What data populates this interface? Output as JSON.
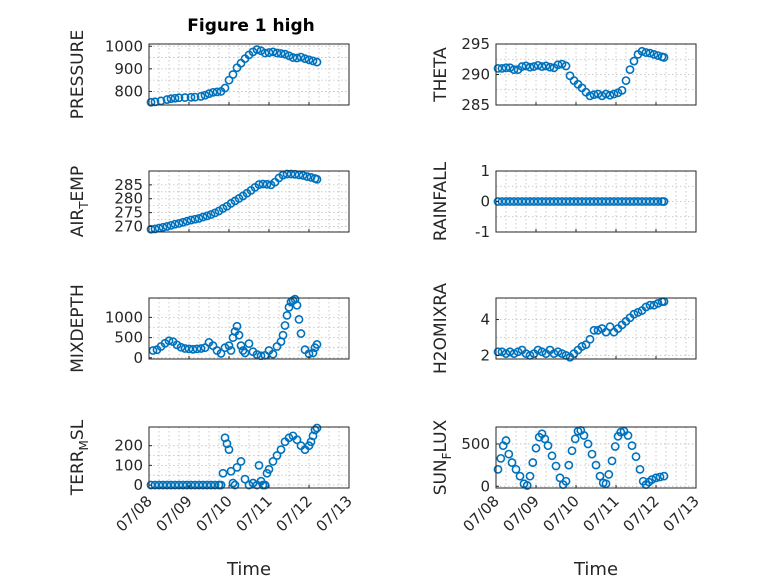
{
  "figure": {
    "title": "Figure 1 high"
  },
  "colors": {
    "marker": "#0072BD",
    "axis": "#262626",
    "grid": "#bdbdbd"
  },
  "chart_data": [
    {
      "id": "pressure",
      "type": "scatter",
      "title": "Figure 1 high",
      "ylabel": "PRESSURE",
      "ylabel_sub": null,
      "xlabel": "",
      "xlim": [
        0,
        5
      ],
      "ylim": [
        740,
        1010
      ],
      "yticks": [
        800,
        900,
        1000
      ],
      "xticks": [
        0,
        1,
        2,
        3,
        4,
        5
      ],
      "xticklabels": [],
      "grid": true,
      "x": [
        0.05,
        0.15,
        0.3,
        0.45,
        0.55,
        0.65,
        0.75,
        0.9,
        1.05,
        1.15,
        1.3,
        1.4,
        1.5,
        1.6,
        1.7,
        1.8,
        1.9,
        2.0,
        2.1,
        2.2,
        2.3,
        2.4,
        2.5,
        2.6,
        2.7,
        2.8,
        2.9,
        3.0,
        3.1,
        3.2,
        3.3,
        3.4,
        3.5,
        3.6,
        3.7,
        3.8,
        3.9,
        4.0,
        4.1,
        4.2
      ],
      "y": [
        752,
        754,
        758,
        764,
        768,
        770,
        772,
        773,
        774,
        775,
        778,
        783,
        790,
        796,
        798,
        800,
        815,
        850,
        875,
        905,
        925,
        945,
        962,
        975,
        985,
        980,
        970,
        972,
        975,
        970,
        968,
        965,
        958,
        950,
        948,
        952,
        945,
        940,
        935,
        930
      ]
    },
    {
      "id": "theta",
      "type": "scatter",
      "ylabel": "THETA",
      "ylabel_sub": null,
      "xlabel": "",
      "xlim": [
        0,
        5
      ],
      "ylim": [
        285,
        295
      ],
      "yticks": [
        285,
        290,
        295
      ],
      "xticks": [
        0,
        1,
        2,
        3,
        4,
        5
      ],
      "xticklabels": [],
      "grid": true,
      "x": [
        0.05,
        0.15,
        0.25,
        0.35,
        0.45,
        0.55,
        0.65,
        0.75,
        0.85,
        0.95,
        1.05,
        1.15,
        1.25,
        1.35,
        1.45,
        1.55,
        1.65,
        1.75,
        1.85,
        1.95,
        2.05,
        2.15,
        2.25,
        2.35,
        2.45,
        2.55,
        2.65,
        2.75,
        2.85,
        2.95,
        3.05,
        3.15,
        3.25,
        3.35,
        3.45,
        3.55,
        3.65,
        3.75,
        3.85,
        3.95,
        4.05,
        4.15,
        4.2
      ],
      "y": [
        291.0,
        291.0,
        291.1,
        291.1,
        290.8,
        290.8,
        291.3,
        291.4,
        291.2,
        291.3,
        291.5,
        291.3,
        291.4,
        291.2,
        291.1,
        291.6,
        291.7,
        291.4,
        289.8,
        289.0,
        288.4,
        287.8,
        287.1,
        286.5,
        286.7,
        286.8,
        286.5,
        286.8,
        286.6,
        286.8,
        287.0,
        287.4,
        289.0,
        290.8,
        292.2,
        293.3,
        293.8,
        293.6,
        293.5,
        293.3,
        293.1,
        292.9,
        292.8
      ]
    },
    {
      "id": "air_temp",
      "type": "scatter",
      "ylabel": "AIR",
      "ylabel_sub": "T",
      "ylabel_post": "EMP",
      "xlabel": "",
      "xlim": [
        0,
        5
      ],
      "ylim": [
        268,
        290
      ],
      "yticks": [
        270,
        275,
        280,
        285
      ],
      "xticks": [
        0,
        1,
        2,
        3,
        4,
        5
      ],
      "xticklabels": [],
      "grid": true,
      "x": [
        0.05,
        0.15,
        0.25,
        0.35,
        0.45,
        0.55,
        0.65,
        0.75,
        0.85,
        0.95,
        1.05,
        1.15,
        1.25,
        1.35,
        1.45,
        1.55,
        1.65,
        1.75,
        1.85,
        1.95,
        2.05,
        2.15,
        2.25,
        2.35,
        2.45,
        2.55,
        2.65,
        2.75,
        2.85,
        2.95,
        3.05,
        3.15,
        3.25,
        3.35,
        3.45,
        3.55,
        3.65,
        3.75,
        3.85,
        3.95,
        4.05,
        4.15,
        4.2
      ],
      "y": [
        269,
        269.1,
        269.4,
        269.7,
        270,
        270.4,
        270.8,
        271.1,
        271.5,
        271.9,
        272.3,
        272.6,
        272.9,
        273.4,
        273.8,
        274.3,
        274.9,
        275.6,
        276.5,
        277.3,
        278.3,
        279.2,
        280.1,
        281.0,
        282.0,
        283.0,
        284.1,
        285.1,
        285.3,
        285.2,
        285.0,
        286.0,
        287.5,
        288.5,
        288.9,
        288.9,
        288.8,
        288.6,
        288.4,
        288.0,
        287.7,
        287.3,
        287.0
      ]
    },
    {
      "id": "rainfall",
      "type": "scatter",
      "ylabel": "RAINFALL",
      "ylabel_sub": null,
      "xlabel": "",
      "xlim": [
        0,
        5
      ],
      "ylim": [
        -1,
        1
      ],
      "yticks": [
        -1,
        0,
        1
      ],
      "xticks": [
        0,
        1,
        2,
        3,
        4,
        5
      ],
      "xticklabels": [],
      "grid": true,
      "x": [
        0.05,
        0.15,
        0.25,
        0.35,
        0.45,
        0.55,
        0.65,
        0.75,
        0.85,
        0.95,
        1.05,
        1.15,
        1.25,
        1.35,
        1.45,
        1.55,
        1.65,
        1.75,
        1.85,
        1.95,
        2.05,
        2.15,
        2.25,
        2.35,
        2.45,
        2.55,
        2.65,
        2.75,
        2.85,
        2.95,
        3.05,
        3.15,
        3.25,
        3.35,
        3.45,
        3.55,
        3.65,
        3.75,
        3.85,
        3.95,
        4.05,
        4.15,
        4.2
      ],
      "y": [
        0,
        0,
        0,
        0,
        0,
        0,
        0,
        0,
        0,
        0,
        0,
        0,
        0,
        0,
        0,
        0,
        0,
        0,
        0,
        0,
        0,
        0,
        0,
        0,
        0,
        0,
        0,
        0,
        0,
        0,
        0,
        0,
        0,
        0,
        0,
        0,
        0,
        0,
        0,
        0,
        0,
        0,
        0
      ]
    },
    {
      "id": "mixdepth",
      "type": "scatter",
      "ylabel": "MIXDEPTH",
      "ylabel_sub": null,
      "xlabel": "",
      "xlim": [
        0,
        5
      ],
      "ylim": [
        -30,
        1480
      ],
      "yticks": [
        0,
        500,
        1000
      ],
      "xticks": [
        0,
        1,
        2,
        3,
        4,
        5
      ],
      "xticklabels": [],
      "grid": true,
      "x": [
        0.1,
        0.2,
        0.3,
        0.4,
        0.5,
        0.6,
        0.7,
        0.8,
        0.9,
        1.0,
        1.1,
        1.2,
        1.3,
        1.4,
        1.5,
        1.6,
        1.7,
        1.8,
        1.9,
        2.0,
        2.05,
        2.1,
        2.15,
        2.2,
        2.25,
        2.3,
        2.35,
        2.4,
        2.5,
        2.6,
        2.7,
        2.8,
        2.9,
        3.0,
        3.1,
        3.2,
        3.3,
        3.35,
        3.4,
        3.45,
        3.5,
        3.55,
        3.6,
        3.65,
        3.7,
        3.75,
        3.8,
        3.9,
        4.0,
        4.1,
        4.15,
        4.2
      ],
      "y": [
        180,
        200,
        280,
        360,
        420,
        400,
        320,
        260,
        230,
        220,
        210,
        220,
        230,
        250,
        380,
        300,
        180,
        110,
        250,
        300,
        180,
        500,
        650,
        780,
        560,
        300,
        180,
        120,
        350,
        150,
        80,
        50,
        60,
        180,
        90,
        280,
        400,
        560,
        800,
        1050,
        1250,
        1380,
        1420,
        1450,
        1300,
        950,
        600,
        200,
        100,
        120,
        250,
        330
      ]
    },
    {
      "id": "h2omixra",
      "type": "scatter",
      "ylabel": "H2OMIXRA",
      "ylabel_sub": null,
      "xlabel": "",
      "xlim": [
        0,
        5
      ],
      "ylim": [
        1.8,
        5.2
      ],
      "yticks": [
        2,
        4
      ],
      "xticks": [
        0,
        1,
        2,
        3,
        4,
        5
      ],
      "xticklabels": [],
      "grid": true,
      "x": [
        0.05,
        0.15,
        0.25,
        0.35,
        0.45,
        0.55,
        0.65,
        0.75,
        0.85,
        0.95,
        1.05,
        1.15,
        1.25,
        1.35,
        1.45,
        1.55,
        1.65,
        1.75,
        1.85,
        1.95,
        2.05,
        2.15,
        2.25,
        2.35,
        2.45,
        2.55,
        2.65,
        2.75,
        2.85,
        2.95,
        3.05,
        3.15,
        3.25,
        3.35,
        3.45,
        3.55,
        3.65,
        3.75,
        3.85,
        3.95,
        4.05,
        4.15,
        4.2
      ],
      "y": [
        2.2,
        2.2,
        2.1,
        2.2,
        2.1,
        2.2,
        2.3,
        2.1,
        2.0,
        2.1,
        2.3,
        2.2,
        2.1,
        2.3,
        2.1,
        2.2,
        2.1,
        2.0,
        1.9,
        2.1,
        2.3,
        2.5,
        2.6,
        2.9,
        3.4,
        3.4,
        3.5,
        3.3,
        3.6,
        3.3,
        3.5,
        3.7,
        3.9,
        4.1,
        4.3,
        4.4,
        4.5,
        4.7,
        4.8,
        4.8,
        4.9,
        5.0,
        5.0
      ]
    },
    {
      "id": "terr_msl",
      "type": "scatter",
      "ylabel": "TERR",
      "ylabel_sub": "M",
      "ylabel_post": "SL",
      "xlabel": "Time",
      "xlim": [
        0,
        5
      ],
      "ylim": [
        -15,
        295
      ],
      "yticks": [
        0,
        100,
        200
      ],
      "xticks": [
        0,
        1,
        2,
        3,
        4,
        5
      ],
      "xticklabels": [
        "07/08",
        "07/09",
        "07/10",
        "07/11",
        "07/12",
        "07/13"
      ],
      "grid": true,
      "x": [
        0.05,
        0.15,
        0.25,
        0.35,
        0.45,
        0.55,
        0.65,
        0.75,
        0.85,
        0.95,
        1.05,
        1.15,
        1.25,
        1.35,
        1.45,
        1.55,
        1.65,
        1.75,
        1.8,
        1.85,
        1.9,
        1.95,
        2.0,
        2.05,
        2.1,
        2.15,
        2.2,
        2.3,
        2.4,
        2.5,
        2.6,
        2.7,
        2.75,
        2.8,
        2.85,
        2.9,
        2.95,
        3.0,
        3.1,
        3.2,
        3.3,
        3.4,
        3.5,
        3.6,
        3.7,
        3.8,
        3.9,
        4.0,
        4.05,
        4.1,
        4.15,
        4.2
      ],
      "y": [
        0,
        0,
        0,
        0,
        0,
        0,
        0,
        0,
        0,
        0,
        0,
        0,
        0,
        0,
        0,
        0,
        0,
        0,
        0,
        60,
        240,
        210,
        180,
        70,
        10,
        0,
        90,
        120,
        30,
        0,
        10,
        0,
        100,
        20,
        0,
        0,
        60,
        80,
        120,
        150,
        180,
        220,
        240,
        250,
        230,
        200,
        180,
        200,
        220,
        250,
        280,
        290
      ]
    },
    {
      "id": "sun_flux",
      "type": "scatter",
      "ylabel": "SUN",
      "ylabel_sub": "F",
      "ylabel_post": "LUX",
      "xlabel": "Time",
      "xlim": [
        0,
        5
      ],
      "ylim": [
        -20,
        700
      ],
      "yticks": [
        0,
        500
      ],
      "xticks": [
        0,
        1,
        2,
        3,
        4,
        5
      ],
      "xticklabels": [
        "07/08",
        "07/09",
        "07/10",
        "07/11",
        "07/12",
        "07/13"
      ],
      "grid": true,
      "x": [
        0.05,
        0.12,
        0.18,
        0.25,
        0.32,
        0.4,
        0.5,
        0.6,
        0.7,
        0.78,
        0.85,
        0.92,
        1.0,
        1.08,
        1.15,
        1.22,
        1.3,
        1.4,
        1.5,
        1.6,
        1.68,
        1.75,
        1.82,
        1.9,
        1.98,
        2.05,
        2.12,
        2.2,
        2.3,
        2.4,
        2.5,
        2.6,
        2.68,
        2.75,
        2.82,
        2.9,
        2.98,
        3.05,
        3.12,
        3.2,
        3.3,
        3.4,
        3.5,
        3.6,
        3.68,
        3.75,
        3.82,
        3.9,
        4.0,
        4.1,
        4.2
      ],
      "y": [
        200,
        330,
        480,
        540,
        380,
        280,
        200,
        120,
        30,
        10,
        120,
        280,
        450,
        580,
        620,
        560,
        480,
        360,
        240,
        100,
        20,
        60,
        250,
        420,
        560,
        650,
        660,
        600,
        500,
        380,
        250,
        120,
        40,
        30,
        140,
        300,
        470,
        590,
        640,
        650,
        600,
        480,
        350,
        200,
        60,
        20,
        50,
        80,
        100,
        110,
        120
      ]
    }
  ]
}
